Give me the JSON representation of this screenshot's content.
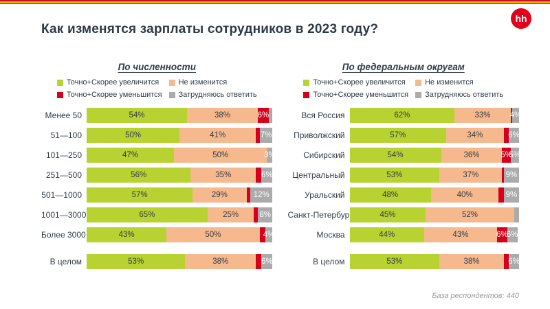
{
  "page": {
    "title": "Как изменятся зарплаты сотрудников в 2023 году?",
    "logo_text": "hh",
    "footer_note": "База респондентов: 440"
  },
  "colors": {
    "increase": "#b8d232",
    "no_change": "#f6b98e",
    "decrease": "#d6001c",
    "undecided": "#ababab",
    "title_text": "#2e3946",
    "brand_red": "#e2001a",
    "footer_text": "#9b9b9b"
  },
  "legend": [
    {
      "key": "increase",
      "label": "Точно+Скорее увеличится"
    },
    {
      "key": "no_change",
      "label": "Не изменится"
    },
    {
      "key": "decrease",
      "label": "Точно+Скорее уменьшится"
    },
    {
      "key": "undecided",
      "label": "Затрудняюсь ответить"
    }
  ],
  "chart_data": [
    {
      "type": "bar",
      "stacked": true,
      "orientation": "horizontal",
      "id": "headcount",
      "title": "По численности",
      "xlim": [
        0,
        100
      ],
      "grid": false,
      "legend_position": "top",
      "series_names": [
        "Точно+Скорее увеличится",
        "Не изменится",
        "Точно+Скорее уменьшится",
        "Затрудняюсь ответить"
      ],
      "categories": [
        "Менее 50",
        "51—100",
        "101—250",
        "251—500",
        "501—1000",
        "1001—3000",
        "Более 3000",
        "В целом"
      ],
      "rows": [
        {
          "category": "Менее 50",
          "values": [
            54,
            38,
            6,
            2
          ],
          "labels": [
            "54%",
            "38%",
            "6%",
            ""
          ],
          "gap_before": false
        },
        {
          "category": "51—100",
          "values": [
            50,
            41,
            2,
            7
          ],
          "labels": [
            "50%",
            "41%",
            "",
            "7%"
          ],
          "gap_before": false
        },
        {
          "category": "101—250",
          "values": [
            47,
            50,
            0,
            3
          ],
          "labels": [
            "47%",
            "50%",
            "",
            "3%"
          ],
          "gap_before": false
        },
        {
          "category": "251—500",
          "values": [
            56,
            35,
            3,
            6
          ],
          "labels": [
            "56%",
            "35%",
            "",
            "6%"
          ],
          "gap_before": false
        },
        {
          "category": "501—1000",
          "values": [
            57,
            29,
            2,
            12
          ],
          "labels": [
            "57%",
            "29%",
            "",
            "12%"
          ],
          "gap_before": false
        },
        {
          "category": "1001—3000",
          "values": [
            65,
            25,
            2,
            8
          ],
          "labels": [
            "65%",
            "25%",
            "",
            "8%"
          ],
          "gap_before": false
        },
        {
          "category": "Более 3000",
          "values": [
            43,
            50,
            3,
            4
          ],
          "labels": [
            "43%",
            "50%",
            "",
            "4%"
          ],
          "gap_before": false
        },
        {
          "category": "В целом",
          "values": [
            53,
            38,
            3,
            6
          ],
          "labels": [
            "53%",
            "38%",
            "",
            "6%"
          ],
          "gap_before": true
        }
      ]
    },
    {
      "type": "bar",
      "stacked": true,
      "orientation": "horizontal",
      "id": "federal-districts",
      "title": "По федеральным округам",
      "xlim": [
        0,
        100
      ],
      "grid": false,
      "legend_position": "top",
      "series_names": [
        "Точно+Скорее увеличится",
        "Не изменится",
        "Точно+Скорее уменьшится",
        "Затрудняюсь ответить"
      ],
      "categories": [
        "Вся Россия",
        "Приволжский",
        "Сибирский",
        "Центральный",
        "Уральский",
        "Санкт-Петербург",
        "Москва",
        "В целом"
      ],
      "rows": [
        {
          "category": "Вся Россия",
          "values": [
            62,
            33,
            1,
            4
          ],
          "labels": [
            "62%",
            "33%",
            "",
            "4%"
          ],
          "gap_before": false
        },
        {
          "category": "Приволжский",
          "values": [
            57,
            34,
            3,
            6
          ],
          "labels": [
            "57%",
            "34%",
            "",
            "6%"
          ],
          "gap_before": false
        },
        {
          "category": "Сибирский",
          "values": [
            54,
            36,
            5,
            5
          ],
          "labels": [
            "54%",
            "36%",
            "5%",
            "5%"
          ],
          "gap_before": false
        },
        {
          "category": "Центральный",
          "values": [
            53,
            37,
            1,
            9
          ],
          "labels": [
            "53%",
            "37%",
            "",
            "9%"
          ],
          "gap_before": false
        },
        {
          "category": "Уральский",
          "values": [
            48,
            40,
            3,
            9
          ],
          "labels": [
            "48%",
            "40%",
            "",
            "9%"
          ],
          "gap_before": false
        },
        {
          "category": "Санкт-Петербург",
          "values": [
            45,
            52,
            0,
            3
          ],
          "labels": [
            "45%",
            "52%",
            "",
            ""
          ],
          "gap_before": false
        },
        {
          "category": "Москва",
          "values": [
            44,
            43,
            6,
            6
          ],
          "labels": [
            "44%",
            "43%",
            "6%",
            "6%"
          ],
          "gap_before": false
        },
        {
          "category": "В целом",
          "values": [
            53,
            38,
            3,
            6
          ],
          "labels": [
            "53%",
            "38%",
            "",
            "6%"
          ],
          "gap_before": true
        }
      ]
    }
  ]
}
